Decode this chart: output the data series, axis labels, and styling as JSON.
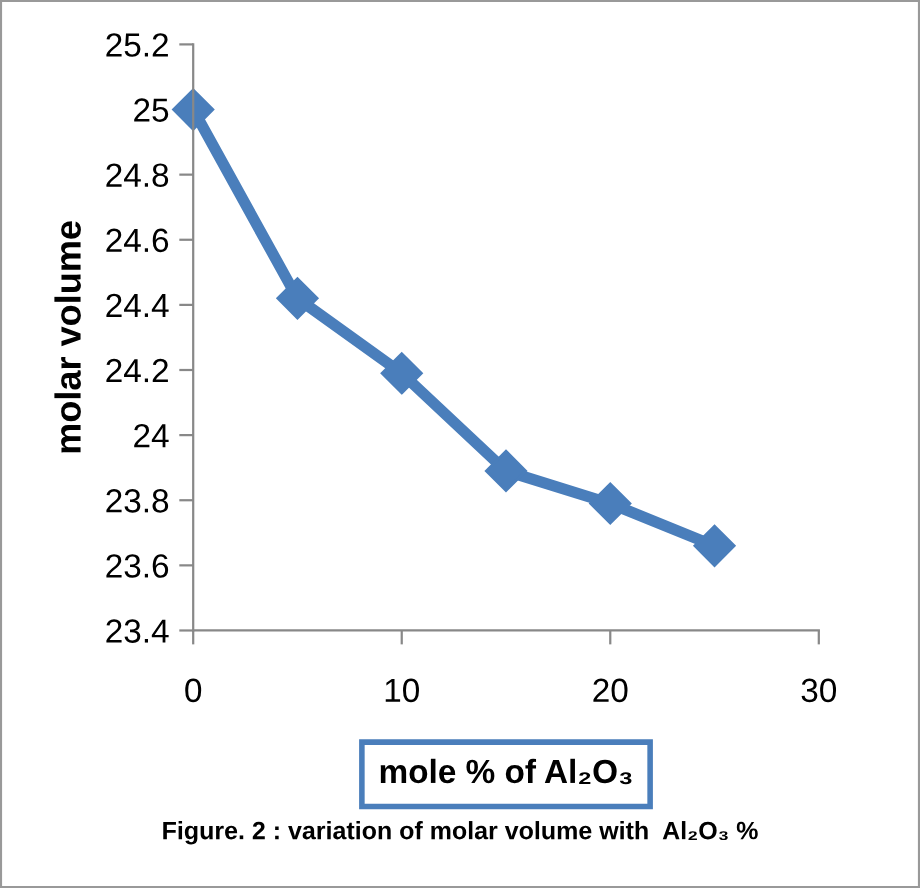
{
  "chart_data": {
    "type": "line",
    "xlabel": "mole % of Al₂O₃",
    "ylabel": "molar volume",
    "annotations": [
      "Figure. 2 : variation of molar volume with  Al₂O₃ %"
    ],
    "x": [
      0,
      5,
      10,
      15,
      20,
      25
    ],
    "series": [
      {
        "color": "#4a7ebb",
        "values": [
          25.0,
          24.42,
          24.19,
          23.89,
          23.79,
          23.66
        ]
      }
    ],
    "xlim": [
      0,
      30
    ],
    "xticks": [
      0,
      10,
      20,
      30
    ],
    "ylim": [
      23.4,
      25.2
    ],
    "yticks": [
      23.4,
      23.6,
      23.8,
      24,
      24.2,
      24.4,
      24.6,
      24.8,
      25,
      25.2
    ],
    "marker": "diamond",
    "line_style": "solid",
    "grid": false,
    "legend": false
  }
}
